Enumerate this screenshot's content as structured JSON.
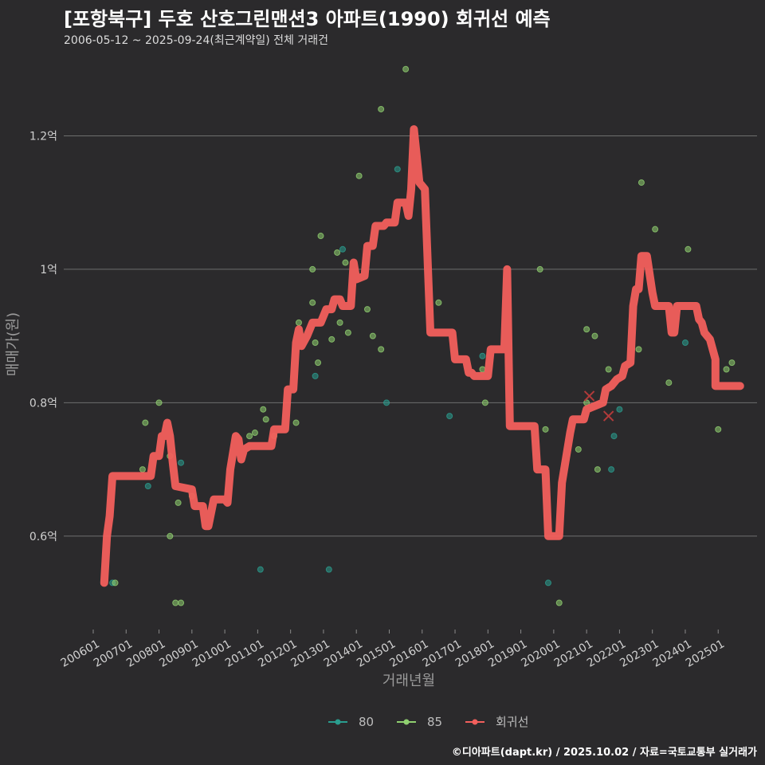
{
  "header": {
    "title": "[포항북구] 두호 산호그린맨션3 아파트(1990) 회귀선 예측",
    "subtitle": "2006-05-12 ~ 2025-09-24(최근계약일) 전체 거래건"
  },
  "footer": {
    "credit": "©디아파트(dapt.kr) / 2025.10.02 / 자료=국토교통부 실거래가"
  },
  "colors": {
    "background": "#2b2a2c",
    "grid": "#6e6e6e",
    "series_80": "#2a9d8f",
    "series_85": "#90d070",
    "regression": "#f25f5c"
  },
  "chart_data": {
    "type": "scatter",
    "title": "[포항북구] 두호 산호그린맨션3 아파트(1990) 회귀선 예측",
    "xlabel": "거래년월",
    "ylabel": "매매가(원)",
    "x_type": "date",
    "xlim": [
      "2006-01",
      "2025-12"
    ],
    "ylim": [
      0.46,
      1.32
    ],
    "y_unit": "억",
    "y_ticks": [
      {
        "value": 0.6,
        "label": "0.6억"
      },
      {
        "value": 0.8,
        "label": "0.8억"
      },
      {
        "value": 1.0,
        "label": "1억"
      },
      {
        "value": 1.2,
        "label": "1.2억"
      }
    ],
    "x_ticks": [
      {
        "value": "2006-01",
        "label": "200601"
      },
      {
        "value": "2007-01",
        "label": "200701"
      },
      {
        "value": "2008-01",
        "label": "200801"
      },
      {
        "value": "2009-01",
        "label": "200901"
      },
      {
        "value": "2010-01",
        "label": "201001"
      },
      {
        "value": "2011-01",
        "label": "201101"
      },
      {
        "value": "2012-01",
        "label": "201201"
      },
      {
        "value": "2013-01",
        "label": "201301"
      },
      {
        "value": "2014-01",
        "label": "201401"
      },
      {
        "value": "2015-01",
        "label": "201501"
      },
      {
        "value": "2016-01",
        "label": "201601"
      },
      {
        "value": "2017-01",
        "label": "201701"
      },
      {
        "value": "2018-01",
        "label": "201801"
      },
      {
        "value": "2019-01",
        "label": "201901"
      },
      {
        "value": "2020-01",
        "label": "202001"
      },
      {
        "value": "2021-01",
        "label": "202101"
      },
      {
        "value": "2022-01",
        "label": "202201"
      },
      {
        "value": "2023-01",
        "label": "202301"
      },
      {
        "value": "2024-01",
        "label": "202401"
      },
      {
        "value": "2025-01",
        "label": "202501"
      }
    ],
    "grid": true,
    "legend_position": "bottom",
    "series": [
      {
        "name": "80",
        "kind": "points",
        "color": "#2a9d8f",
        "points": [
          {
            "x": "2006-08",
            "y": 0.53
          },
          {
            "x": "2007-09",
            "y": 0.675
          },
          {
            "x": "2008-09",
            "y": 0.71
          },
          {
            "x": "2011-02",
            "y": 0.55
          },
          {
            "x": "2012-10",
            "y": 0.84
          },
          {
            "x": "2013-03",
            "y": 0.55
          },
          {
            "x": "2013-08",
            "y": 1.03
          },
          {
            "x": "2015-00",
            "y": 0.8
          },
          {
            "x": "2015-04",
            "y": 1.15
          },
          {
            "x": "2016-11",
            "y": 0.78
          },
          {
            "x": "2017-11",
            "y": 0.87
          },
          {
            "x": "2019-11",
            "y": 0.53
          },
          {
            "x": "2021-10",
            "y": 0.7
          },
          {
            "x": "2021-11",
            "y": 0.75
          },
          {
            "x": "2022-01",
            "y": 0.79
          },
          {
            "x": "2024-01",
            "y": 0.89
          }
        ]
      },
      {
        "name": "85",
        "kind": "points",
        "color": "#90d070",
        "points": [
          {
            "x": "2006-09",
            "y": 0.53
          },
          {
            "x": "2007-07",
            "y": 0.7
          },
          {
            "x": "2007-08",
            "y": 0.77
          },
          {
            "x": "2008-01",
            "y": 0.8
          },
          {
            "x": "2008-05",
            "y": 0.6
          },
          {
            "x": "2008-05",
            "y": 0.72
          },
          {
            "x": "2008-07",
            "y": 0.5
          },
          {
            "x": "2008-08",
            "y": 0.65
          },
          {
            "x": "2008-09",
            "y": 0.5
          },
          {
            "x": "2009-01",
            "y": 0.66
          },
          {
            "x": "2010-10",
            "y": 0.75
          },
          {
            "x": "2010-12",
            "y": 0.755
          },
          {
            "x": "2011-03",
            "y": 0.79
          },
          {
            "x": "2011-04",
            "y": 0.775
          },
          {
            "x": "2011-07",
            "y": 0.75
          },
          {
            "x": "2012-03",
            "y": 0.77
          },
          {
            "x": "2012-04",
            "y": 0.92
          },
          {
            "x": "2012-09",
            "y": 0.95
          },
          {
            "x": "2012-09",
            "y": 1.0
          },
          {
            "x": "2012-10",
            "y": 0.89
          },
          {
            "x": "2012-11",
            "y": 0.86
          },
          {
            "x": "2013-00",
            "y": 1.05
          },
          {
            "x": "2013-04",
            "y": 0.895
          },
          {
            "x": "2013-06",
            "y": 1.025
          },
          {
            "x": "2013-07",
            "y": 0.92
          },
          {
            "x": "2013-09",
            "y": 1.01
          },
          {
            "x": "2013-10",
            "y": 0.905
          },
          {
            "x": "2014-02",
            "y": 1.14
          },
          {
            "x": "2014-05",
            "y": 0.94
          },
          {
            "x": "2014-07",
            "y": 0.9
          },
          {
            "x": "2014-10",
            "y": 1.24
          },
          {
            "x": "2014-10",
            "y": 0.88
          },
          {
            "x": "2015-07",
            "y": 1.3
          },
          {
            "x": "2016-07",
            "y": 0.95
          },
          {
            "x": "2017-11",
            "y": 0.85
          },
          {
            "x": "2017-12",
            "y": 0.8
          },
          {
            "x": "2019-08",
            "y": 1.0
          },
          {
            "x": "2019-10",
            "y": 0.76
          },
          {
            "x": "2020-03",
            "y": 0.5
          },
          {
            "x": "2020-10",
            "y": 0.73
          },
          {
            "x": "2021-01",
            "y": 0.8
          },
          {
            "x": "2021-01",
            "y": 0.91
          },
          {
            "x": "2021-04",
            "y": 0.9
          },
          {
            "x": "2021-05",
            "y": 0.7
          },
          {
            "x": "2021-09",
            "y": 0.85
          },
          {
            "x": "2022-08",
            "y": 0.88
          },
          {
            "x": "2022-09",
            "y": 1.13
          },
          {
            "x": "2023-02",
            "y": 1.06
          },
          {
            "x": "2023-07",
            "y": 0.83
          },
          {
            "x": "2024-02",
            "y": 1.03
          },
          {
            "x": "2025-01",
            "y": 0.76
          },
          {
            "x": "2025-04",
            "y": 0.85
          },
          {
            "x": "2025-06",
            "y": 0.86
          }
        ]
      },
      {
        "name": "회귀선",
        "kind": "line",
        "color": "#f25f5c",
        "points": [
          {
            "x": "2006-05",
            "y": 0.53
          },
          {
            "x": "2006-06",
            "y": 0.6
          },
          {
            "x": "2006-07",
            "y": 0.63
          },
          {
            "x": "2006-08",
            "y": 0.69
          },
          {
            "x": "2007-10",
            "y": 0.69
          },
          {
            "x": "2007-11",
            "y": 0.72
          },
          {
            "x": "2008-01",
            "y": 0.72
          },
          {
            "x": "2008-02",
            "y": 0.75
          },
          {
            "x": "2008-03",
            "y": 0.75
          },
          {
            "x": "2008-04",
            "y": 0.77
          },
          {
            "x": "2008-05",
            "y": 0.75
          },
          {
            "x": "2008-06",
            "y": 0.71
          },
          {
            "x": "2008-07",
            "y": 0.675
          },
          {
            "x": "2009-01",
            "y": 0.67
          },
          {
            "x": "2009-02",
            "y": 0.645
          },
          {
            "x": "2009-05",
            "y": 0.645
          },
          {
            "x": "2009-06",
            "y": 0.615
          },
          {
            "x": "2009-07",
            "y": 0.615
          },
          {
            "x": "2009-09",
            "y": 0.655
          },
          {
            "x": "2010-01",
            "y": 0.655
          },
          {
            "x": "2010-02",
            "y": 0.65
          },
          {
            "x": "2010-03",
            "y": 0.7
          },
          {
            "x": "2010-05",
            "y": 0.75
          },
          {
            "x": "2010-06",
            "y": 0.745
          },
          {
            "x": "2010-07",
            "y": 0.715
          },
          {
            "x": "2010-08",
            "y": 0.73
          },
          {
            "x": "2010-10",
            "y": 0.735
          },
          {
            "x": "2011-06",
            "y": 0.735
          },
          {
            "x": "2011-07",
            "y": 0.76
          },
          {
            "x": "2011-11",
            "y": 0.76
          },
          {
            "x": "2012-00",
            "y": 0.82
          },
          {
            "x": "2012-02",
            "y": 0.82
          },
          {
            "x": "2012-03",
            "y": 0.89
          },
          {
            "x": "2012-04",
            "y": 0.91
          },
          {
            "x": "2012-05",
            "y": 0.885
          },
          {
            "x": "2012-07",
            "y": 0.9
          },
          {
            "x": "2012-09",
            "y": 0.92
          },
          {
            "x": "2013-00",
            "y": 0.92
          },
          {
            "x": "2013-02",
            "y": 0.94
          },
          {
            "x": "2013-04",
            "y": 0.94
          },
          {
            "x": "2013-05",
            "y": 0.955
          },
          {
            "x": "2013-07",
            "y": 0.955
          },
          {
            "x": "2013-08",
            "y": 0.945
          },
          {
            "x": "2013-11",
            "y": 0.945
          },
          {
            "x": "2014-00",
            "y": 1.01
          },
          {
            "x": "2014-01",
            "y": 0.985
          },
          {
            "x": "2014-04",
            "y": 0.99
          },
          {
            "x": "2014-05",
            "y": 1.035
          },
          {
            "x": "2014-07",
            "y": 1.035
          },
          {
            "x": "2014-08",
            "y": 1.065
          },
          {
            "x": "2014-11",
            "y": 1.065
          },
          {
            "x": "2015-00",
            "y": 1.07
          },
          {
            "x": "2015-03",
            "y": 1.07
          },
          {
            "x": "2015-04",
            "y": 1.1
          },
          {
            "x": "2015-07",
            "y": 1.1
          },
          {
            "x": "2015-08",
            "y": 1.08
          },
          {
            "x": "2015-09",
            "y": 1.12
          },
          {
            "x": "2015-10",
            "y": 1.21
          },
          {
            "x": "2015-11",
            "y": 1.17
          },
          {
            "x": "2016-00",
            "y": 1.13
          },
          {
            "x": "2016-02",
            "y": 1.12
          },
          {
            "x": "2016-04",
            "y": 0.905
          },
          {
            "x": "2016-12",
            "y": 0.905
          },
          {
            "x": "2017-01",
            "y": 0.865
          },
          {
            "x": "2017-05",
            "y": 0.865
          },
          {
            "x": "2017-06",
            "y": 0.845
          },
          {
            "x": "2017-07",
            "y": 0.845
          },
          {
            "x": "2017-08",
            "y": 0.84
          },
          {
            "x": "2018-01",
            "y": 0.84
          },
          {
            "x": "2018-02",
            "y": 0.88
          },
          {
            "x": "2018-07",
            "y": 0.88
          },
          {
            "x": "2018-08",
            "y": 1.0
          },
          {
            "x": "2018-09",
            "y": 0.765
          },
          {
            "x": "2019-06",
            "y": 0.765
          },
          {
            "x": "2019-07",
            "y": 0.7
          },
          {
            "x": "2019-10",
            "y": 0.7
          },
          {
            "x": "2019-11",
            "y": 0.6
          },
          {
            "x": "2020-03",
            "y": 0.6
          },
          {
            "x": "2020-04",
            "y": 0.68
          },
          {
            "x": "2020-07",
            "y": 0.755
          },
          {
            "x": "2020-08",
            "y": 0.775
          },
          {
            "x": "2020-12",
            "y": 0.775
          },
          {
            "x": "2021-01",
            "y": 0.79
          },
          {
            "x": "2021-07",
            "y": 0.8
          },
          {
            "x": "2021-08",
            "y": 0.82
          },
          {
            "x": "2021-10",
            "y": 0.825
          },
          {
            "x": "2022-00",
            "y": 0.835
          },
          {
            "x": "2022-02",
            "y": 0.84
          },
          {
            "x": "2022-03",
            "y": 0.855
          },
          {
            "x": "2022-05",
            "y": 0.86
          },
          {
            "x": "2022-06",
            "y": 0.945
          },
          {
            "x": "2022-07",
            "y": 0.97
          },
          {
            "x": "2022-08",
            "y": 0.97
          },
          {
            "x": "2022-09",
            "y": 1.02
          },
          {
            "x": "2022-11",
            "y": 1.02
          },
          {
            "x": "2023-01",
            "y": 0.965
          },
          {
            "x": "2023-02",
            "y": 0.945
          },
          {
            "x": "2023-07",
            "y": 0.945
          },
          {
            "x": "2023-08",
            "y": 0.905
          },
          {
            "x": "2023-09",
            "y": 0.905
          },
          {
            "x": "2023-10",
            "y": 0.945
          },
          {
            "x": "2024-05",
            "y": 0.945
          },
          {
            "x": "2024-06",
            "y": 0.925
          },
          {
            "x": "2024-07",
            "y": 0.92
          },
          {
            "x": "2024-08",
            "y": 0.905
          },
          {
            "x": "2024-10",
            "y": 0.895
          },
          {
            "x": "2024-12",
            "y": 0.865
          },
          {
            "x": "2025-00",
            "y": 0.825
          },
          {
            "x": "2025-09",
            "y": 0.825
          }
        ]
      }
    ],
    "annotations": [
      {
        "kind": "x-marker",
        "x": "2021-09",
        "y": 0.78,
        "color": "#b23a3a"
      },
      {
        "kind": "x-marker",
        "x": "2021-02",
        "y": 0.81,
        "color": "#b23a3a"
      }
    ]
  }
}
